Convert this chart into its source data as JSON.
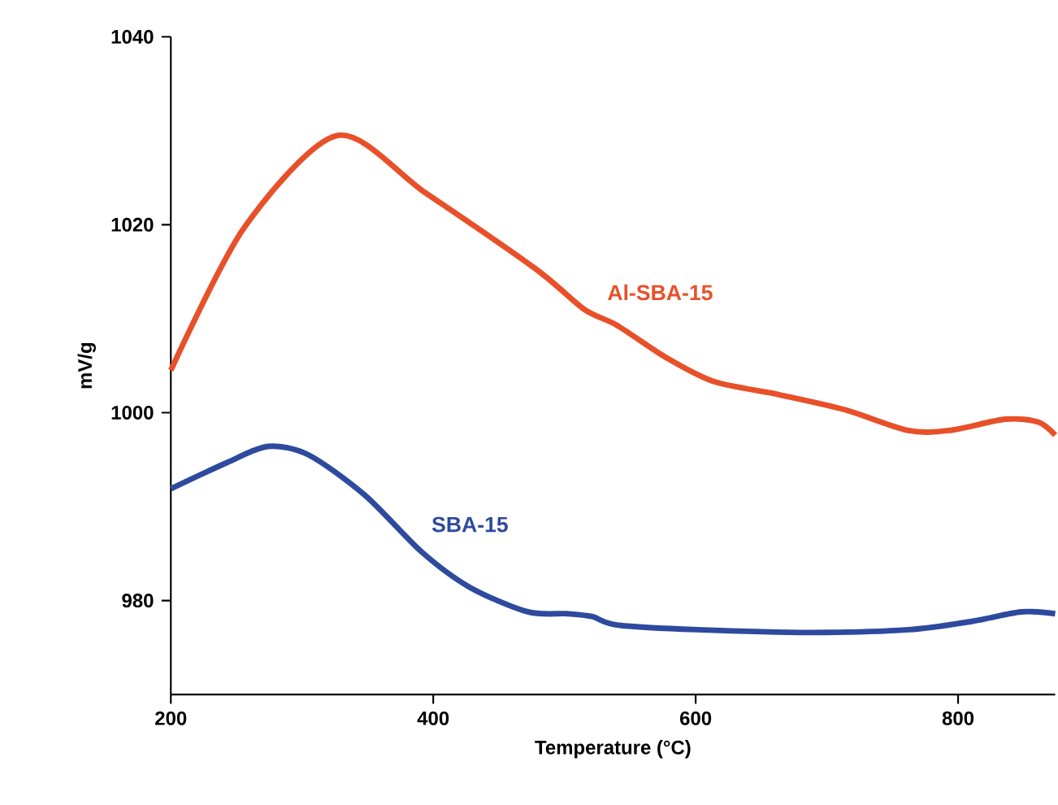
{
  "chart_data": {
    "type": "line",
    "xlabel": "Temperature (°C)",
    "ylabel": "mV/g",
    "xlim": [
      200,
      874
    ],
    "ylim": [
      970,
      1040
    ],
    "xticks": [
      200,
      400,
      600,
      800
    ],
    "yticks": [
      980,
      1000,
      1020,
      1040
    ],
    "grid": false,
    "legend": false,
    "marker": "none",
    "line_style": "solid",
    "series": [
      {
        "name": "Al-SBA-15",
        "color": "#e8502a",
        "x": [
          200,
          256,
          327,
          394,
          478,
          515,
          540,
          577,
          614,
          664,
          714,
          762,
          793,
          836,
          861,
          874
        ],
        "values": [
          1004.5,
          1019.7,
          1029.5,
          1023.4,
          1015.3,
          1011,
          1009.3,
          1005.9,
          1003.3,
          1001.9,
          1000.3,
          998.1,
          998.1,
          999.3,
          999,
          997.6
        ]
      },
      {
        "name": "SBA-15",
        "color": "#2e4a9e",
        "x": [
          200,
          243,
          274,
          305,
          348,
          391,
          428,
          472,
          502,
          521,
          540,
          601,
          688,
          762,
          811,
          848,
          874
        ],
        "values": [
          991.9,
          994.7,
          996.4,
          995.5,
          991.2,
          985.2,
          981.4,
          978.8,
          978.6,
          978.3,
          977.4,
          976.9,
          976.6,
          976.9,
          977.8,
          978.8,
          978.6
        ]
      }
    ]
  }
}
